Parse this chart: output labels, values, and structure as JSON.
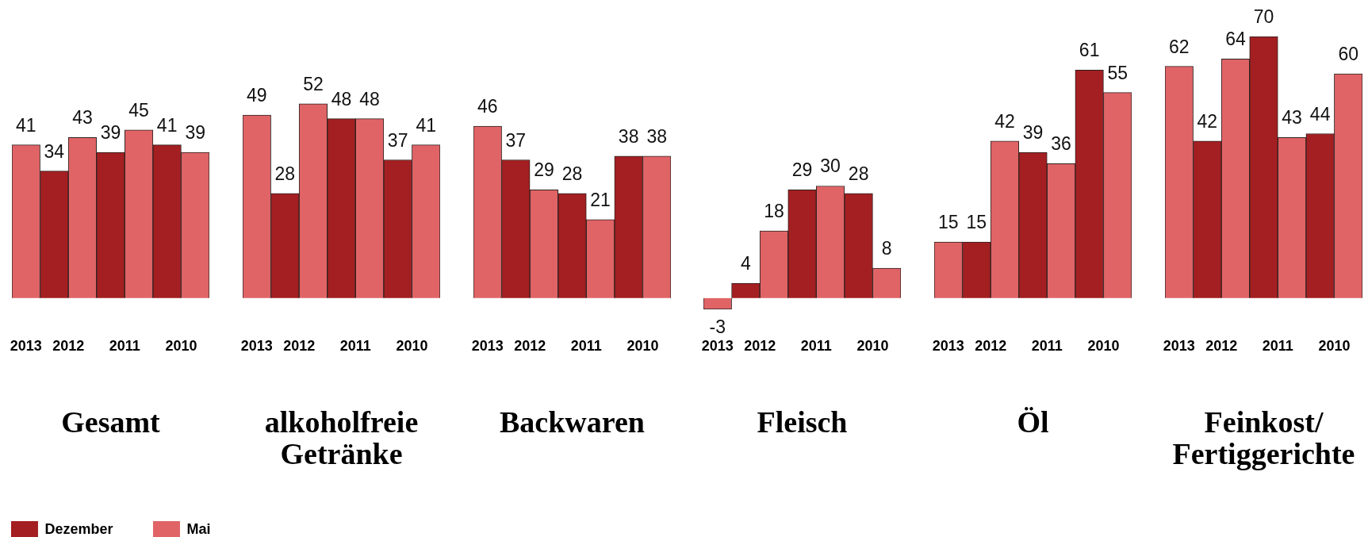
{
  "chart_data": [
    {
      "type": "bar",
      "title": "Gesamt",
      "categories": [
        "2013",
        "2012",
        "2011",
        "2010"
      ],
      "series": [
        {
          "name": "Dezember",
          "color": "#a31f21",
          "values": [
            null,
            34,
            39,
            41
          ]
        },
        {
          "name": "Mai",
          "color": "#e06466",
          "values": [
            41,
            43,
            45,
            39
          ]
        }
      ],
      "data_labels": true,
      "tick_labels": "x",
      "legend": "bottom"
    },
    {
      "type": "bar",
      "title": "alkoholfreie Getränke",
      "categories": [
        "2013",
        "2012",
        "2011",
        "2010"
      ],
      "series": [
        {
          "color": "#a31f21",
          "values": [
            null,
            28,
            48,
            37
          ]
        },
        {
          "color": "#e06466",
          "values": [
            49,
            52,
            48,
            41
          ]
        }
      ],
      "data_labels": true,
      "tick_labels": "x"
    },
    {
      "type": "bar",
      "title": "Backwaren",
      "categories": [
        "2013",
        "2012",
        "2011",
        "2010"
      ],
      "series": [
        {
          "color": "#a31f21",
          "values": [
            null,
            37,
            28,
            38
          ]
        },
        {
          "color": "#e06466",
          "values": [
            46,
            29,
            21,
            38
          ]
        }
      ],
      "data_labels": true,
      "tick_labels": "x"
    },
    {
      "type": "bar",
      "title": "Fleisch",
      "categories": [
        "2013",
        "2012",
        "2011",
        "2010"
      ],
      "series": [
        {
          "color": "#a31f21",
          "values": [
            null,
            4,
            29,
            28
          ]
        },
        {
          "color": "#e06466",
          "values": [
            -3,
            18,
            30,
            8
          ]
        }
      ],
      "data_labels": true,
      "tick_labels": "x"
    },
    {
      "type": "bar",
      "title": "Öl",
      "categories": [
        "2013",
        "2012",
        "2011",
        "2010"
      ],
      "series": [
        {
          "color": "#a31f21",
          "values": [
            null,
            15,
            39,
            61
          ]
        },
        {
          "color": "#e06466",
          "values": [
            15,
            42,
            36,
            55
          ]
        }
      ],
      "data_labels": true,
      "tick_labels": "x"
    },
    {
      "type": "bar",
      "title": "Feinkost/ Fertiggerichte",
      "categories": [
        "2013",
        "2012",
        "2011",
        "2010"
      ],
      "series": [
        {
          "color": "#a31f21",
          "values": [
            null,
            42,
            70,
            44
          ]
        },
        {
          "color": "#e06466",
          "values": [
            62,
            64,
            43,
            60
          ]
        }
      ],
      "data_labels": true,
      "tick_labels": "x"
    }
  ]
}
